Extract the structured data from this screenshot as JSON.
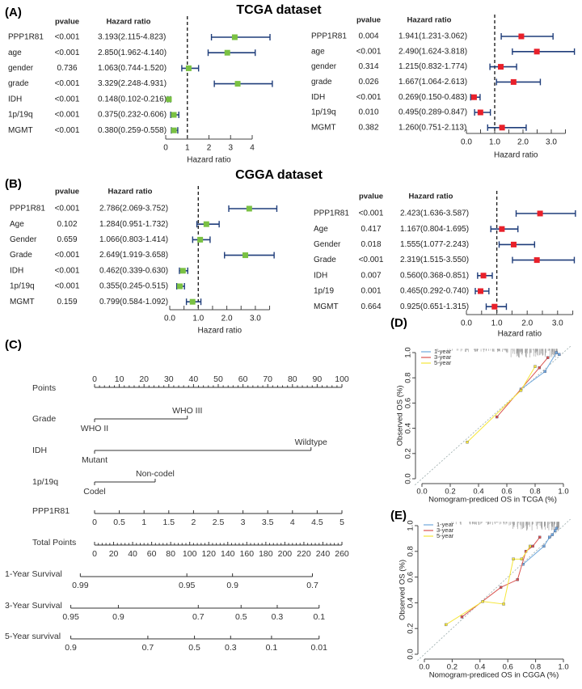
{
  "figure": {
    "panel_labels": [
      "(A)",
      "(B)",
      "(C)",
      "(D)",
      "(E)"
    ],
    "titles": {
      "tcga": "TCGA dataset",
      "cgga": "CGGA dataset"
    }
  },
  "chart_data": [
    {
      "type": "forest",
      "dataset": "TCGA",
      "col_headers": [
        "pvalue",
        "Hazard ratio"
      ],
      "xlabel": "Hazard ratio",
      "xlim": [
        0,
        4
      ],
      "ticks": [
        0,
        1,
        2,
        3,
        4
      ],
      "tick_labels": [
        "0",
        "1",
        "2",
        "3",
        "4"
      ],
      "ref_line": 1,
      "marker_color": "#7ac143",
      "ci_color": "#1f3d7a",
      "rows": [
        {
          "name": "PPP1R81",
          "pvalue": "<0.001",
          "hr_text": "3.193(2.115-4.823)",
          "hr": 3.193,
          "lo": 2.115,
          "hi": 4.823
        },
        {
          "name": "age",
          "pvalue": "<0.001",
          "hr_text": "2.850(1.962-4.140)",
          "hr": 2.85,
          "lo": 1.962,
          "hi": 4.14
        },
        {
          "name": "gender",
          "pvalue": "0.736",
          "hr_text": "1.063(0.744-1.520)",
          "hr": 1.063,
          "lo": 0.744,
          "hi": 1.52
        },
        {
          "name": "grade",
          "pvalue": "<0.001",
          "hr_text": "3.329(2.248-4.931)",
          "hr": 3.329,
          "lo": 2.248,
          "hi": 4.931
        },
        {
          "name": "IDH",
          "pvalue": "<0.001",
          "hr_text": "0.148(0.102-0.216)",
          "hr": 0.148,
          "lo": 0.102,
          "hi": 0.216
        },
        {
          "name": "1p/19q",
          "pvalue": "<0.001",
          "hr_text": "0.375(0.232-0.606)",
          "hr": 0.375,
          "lo": 0.232,
          "hi": 0.606
        },
        {
          "name": "MGMT",
          "pvalue": "<0.001",
          "hr_text": "0.380(0.259-0.558)",
          "hr": 0.38,
          "lo": 0.259,
          "hi": 0.558
        }
      ]
    },
    {
      "type": "forest",
      "dataset": "TCGA",
      "col_headers": [
        "pvalue",
        "Hazard ratio"
      ],
      "xlabel": "Hazard ratio",
      "xlim": [
        0,
        3.5
      ],
      "ticks": [
        0,
        1,
        2,
        3
      ],
      "tick_labels": [
        "0.0",
        "1.0",
        "2.0",
        "3.0"
      ],
      "ref_line": 1,
      "marker_color": "#e8202a",
      "ci_color": "#1f3d7a",
      "rows": [
        {
          "name": "PPP1R81",
          "pvalue": "0.004",
          "hr_text": "1.941(1.231-3.062)",
          "hr": 1.941,
          "lo": 1.231,
          "hi": 3.062
        },
        {
          "name": "age",
          "pvalue": "<0.001",
          "hr_text": "2.490(1.624-3.818)",
          "hr": 2.49,
          "lo": 1.624,
          "hi": 3.818
        },
        {
          "name": "gender",
          "pvalue": "0.314",
          "hr_text": "1.215(0.832-1.774)",
          "hr": 1.215,
          "lo": 0.832,
          "hi": 1.774
        },
        {
          "name": "grade",
          "pvalue": "0.026",
          "hr_text": "1.667(1.064-2.613)",
          "hr": 1.667,
          "lo": 1.064,
          "hi": 2.613
        },
        {
          "name": "IDH",
          "pvalue": "<0.001",
          "hr_text": "0.269(0.150-0.483)",
          "hr": 0.269,
          "lo": 0.15,
          "hi": 0.483
        },
        {
          "name": "1p/19q",
          "pvalue": "0.010",
          "hr_text": "0.495(0.289-0.847)",
          "hr": 0.495,
          "lo": 0.289,
          "hi": 0.847
        },
        {
          "name": "MGMT",
          "pvalue": "0.382",
          "hr_text": "1.260(0.751-2.113)",
          "hr": 1.26,
          "lo": 0.751,
          "hi": 2.113
        }
      ]
    },
    {
      "type": "forest",
      "dataset": "CGGA",
      "col_headers": [
        "pvalue",
        "Hazard ratio"
      ],
      "xlabel": "Hazard ratio",
      "xlim": [
        0,
        3.5
      ],
      "ticks": [
        0,
        1,
        2,
        3
      ],
      "tick_labels": [
        "0.0",
        "1.0",
        "2.0",
        "3.0"
      ],
      "ref_line": 1,
      "marker_color": "#7ac143",
      "ci_color": "#1f3d7a",
      "rows": [
        {
          "name": "PPP1R81",
          "pvalue": "<0.001",
          "hr_text": "2.786(2.069-3.752)",
          "hr": 2.786,
          "lo": 2.069,
          "hi": 3.752
        },
        {
          "name": "Age",
          "pvalue": "0.102",
          "hr_text": "1.284(0.951-1.732)",
          "hr": 1.284,
          "lo": 0.951,
          "hi": 1.732
        },
        {
          "name": "Gender",
          "pvalue": "0.659",
          "hr_text": "1.066(0.803-1.414)",
          "hr": 1.066,
          "lo": 0.803,
          "hi": 1.414
        },
        {
          "name": "Grade",
          "pvalue": "<0.001",
          "hr_text": "2.649(1.919-3.658)",
          "hr": 2.649,
          "lo": 1.919,
          "hi": 3.658
        },
        {
          "name": "IDH",
          "pvalue": "<0.001",
          "hr_text": "0.462(0.339-0.630)",
          "hr": 0.462,
          "lo": 0.339,
          "hi": 0.63
        },
        {
          "name": "1p/19q",
          "pvalue": "<0.001",
          "hr_text": "0.355(0.245-0.515)",
          "hr": 0.355,
          "lo": 0.245,
          "hi": 0.515
        },
        {
          "name": "MGMT",
          "pvalue": "0.159",
          "hr_text": "0.799(0.584-1.092)",
          "hr": 0.799,
          "lo": 0.584,
          "hi": 1.092
        }
      ]
    },
    {
      "type": "forest",
      "dataset": "CGGA",
      "col_headers": [
        "pvalue",
        "Hazard ratio"
      ],
      "xlabel": "Hazard ratio",
      "xlim": [
        0,
        3.5
      ],
      "ticks": [
        0,
        1,
        2,
        3
      ],
      "tick_labels": [
        "0.0",
        "1.0",
        "2.0",
        "3.0"
      ],
      "ref_line": 1,
      "marker_color": "#e8202a",
      "ci_color": "#1f3d7a",
      "rows": [
        {
          "name": "PPP1R81",
          "pvalue": "<0.001",
          "hr_text": "2.423(1.636-3.587)",
          "hr": 2.423,
          "lo": 1.636,
          "hi": 3.587
        },
        {
          "name": "Age",
          "pvalue": "0.417",
          "hr_text": "1.167(0.804-1.695)",
          "hr": 1.167,
          "lo": 0.804,
          "hi": 1.695
        },
        {
          "name": "Gender",
          "pvalue": "0.018",
          "hr_text": "1.555(1.077-2.243)",
          "hr": 1.555,
          "lo": 1.077,
          "hi": 2.243
        },
        {
          "name": "Grade",
          "pvalue": "<0.001",
          "hr_text": "2.319(1.515-3.550)",
          "hr": 2.319,
          "lo": 1.515,
          "hi": 3.55
        },
        {
          "name": "IDH",
          "pvalue": "0.007",
          "hr_text": "0.560(0.368-0.851)",
          "hr": 0.56,
          "lo": 0.368,
          "hi": 0.851
        },
        {
          "name": "1p/19",
          "pvalue": "0.001",
          "hr_text": "0.465(0.292-0.740)",
          "hr": 0.465,
          "lo": 0.292,
          "hi": 0.74
        },
        {
          "name": "MGMT",
          "pvalue": "0.664",
          "hr_text": "0.925(0.651-1.315)",
          "hr": 0.925,
          "lo": 0.651,
          "hi": 1.315
        }
      ]
    },
    {
      "type": "nomogram",
      "points_axis": {
        "label": "Points",
        "range": [
          0,
          100
        ],
        "ticks": [
          0,
          10,
          20,
          30,
          40,
          50,
          60,
          70,
          80,
          90,
          100
        ],
        "tick_labels": [
          "0",
          "10",
          "20",
          "30",
          "40",
          "50",
          "60",
          "70",
          "80",
          "90",
          "100"
        ]
      },
      "variables": [
        {
          "label": "Grade",
          "levels": [
            {
              "label": "WHO II",
              "points": 0
            },
            {
              "label": "WHO III",
              "points": 37.5
            }
          ]
        },
        {
          "label": "IDH",
          "levels": [
            {
              "label": "Mutant",
              "points": 0
            },
            {
              "label": "Wildtype",
              "points": 87.5
            }
          ]
        },
        {
          "label": "1p/19q",
          "levels": [
            {
              "label": "Codel",
              "points": 0
            },
            {
              "label": "Non-codel",
              "points": 24.5
            }
          ]
        }
      ],
      "continuous": {
        "label": "PPP1R81",
        "values": [
          0,
          0.5,
          1,
          1.5,
          2,
          2.5,
          3,
          3.5,
          4,
          4.5,
          5
        ],
        "tick_labels": [
          "0",
          "0.5",
          "1",
          "1.5",
          "2",
          "2.5",
          "3",
          "3.5",
          "4",
          "4.5",
          "5"
        ],
        "points_range": [
          0,
          100
        ]
      },
      "total_points": {
        "label": "Total Points",
        "range": [
          0,
          260
        ],
        "ticks": [
          0,
          20,
          40,
          60,
          80,
          100,
          120,
          140,
          160,
          180,
          200,
          220,
          240,
          260
        ],
        "tick_labels": [
          "0",
          "20",
          "40",
          "60",
          "80",
          "100",
          "120",
          "140",
          "160",
          "180",
          "200",
          "220",
          "240",
          "260"
        ]
      },
      "survival": [
        {
          "label": "1-Year Survival",
          "ticks": [
            {
              "label": "0.99",
              "total_points": -15
            },
            {
              "label": "0.95",
              "total_points": 97
            },
            {
              "label": "0.9",
              "total_points": 145
            },
            {
              "label": "0.7",
              "total_points": 229
            }
          ]
        },
        {
          "label": "3-Year Survival",
          "ticks": [
            {
              "label": "0.95",
              "total_points": -25
            },
            {
              "label": "0.9",
              "total_points": 25
            },
            {
              "label": "0.7",
              "total_points": 109
            },
            {
              "label": "0.5",
              "total_points": 154
            },
            {
              "label": "0.3",
              "total_points": 192
            },
            {
              "label": "0.1",
              "total_points": 236
            }
          ]
        },
        {
          "label": "5-Year survival",
          "ticks": [
            {
              "label": "0.9",
              "total_points": -25
            },
            {
              "label": "0.7",
              "total_points": 56
            },
            {
              "label": "0.5",
              "total_points": 105
            },
            {
              "label": "0.3",
              "total_points": 143
            },
            {
              "label": "0.1",
              "total_points": 186
            },
            {
              "label": "0.01",
              "total_points": 236
            }
          ]
        }
      ]
    },
    {
      "type": "line",
      "subtype": "calibration",
      "xlabel": "Nomogram-prediced OS in TCGA (%)",
      "ylabel": "Observed OS (%)",
      "xlim": [
        0,
        1
      ],
      "ylim": [
        0,
        1
      ],
      "ticks": [
        0,
        0.2,
        0.4,
        0.6,
        0.8,
        1.0
      ],
      "tick_labels": [
        "0.0",
        "0.2",
        "0.4",
        "0.6",
        "0.8",
        "1.0"
      ],
      "legend_position": "top-left",
      "series": [
        {
          "name": "1-year",
          "color": "#6fa8dc",
          "x": [
            0.7,
            0.87,
            0.95,
            0.97
          ],
          "y": [
            0.71,
            0.85,
            1.0,
            0.985
          ]
        },
        {
          "name": "3-year",
          "color": "#d9534f",
          "x": [
            0.53,
            0.83,
            0.89
          ],
          "y": [
            0.49,
            0.88,
            0.96
          ]
        },
        {
          "name": "5-year",
          "color": "#f5e63a",
          "x": [
            0.32,
            0.7,
            0.8
          ],
          "y": [
            0.29,
            0.7,
            0.89
          ]
        }
      ]
    },
    {
      "type": "line",
      "subtype": "calibration",
      "xlabel": "Nomogram-prediced OS in CGGA (%)",
      "ylabel": "Observed OS (%)",
      "xlim": [
        0,
        1
      ],
      "ylim": [
        0,
        1
      ],
      "ticks": [
        0,
        0.2,
        0.4,
        0.6,
        0.8,
        1.0
      ],
      "tick_labels": [
        "0.0",
        "0.2",
        "0.4",
        "0.6",
        "0.8",
        "1.0"
      ],
      "legend_position": "top-left",
      "series": [
        {
          "name": "1-year",
          "color": "#6fa8dc",
          "x": [
            0.71,
            0.86,
            0.9,
            0.92,
            0.94,
            0.95
          ],
          "y": [
            0.7,
            0.84,
            0.91,
            0.93,
            0.96,
            0.98
          ]
        },
        {
          "name": "3-year",
          "color": "#d9534f",
          "x": [
            0.27,
            0.55,
            0.67,
            0.73,
            0.78,
            0.83
          ],
          "y": [
            0.29,
            0.52,
            0.58,
            0.8,
            0.84,
            0.91
          ]
        },
        {
          "name": "5-year",
          "color": "#f5e63a",
          "x": [
            0.155,
            0.42,
            0.57,
            0.64,
            0.7,
            0.76
          ],
          "y": [
            0.23,
            0.41,
            0.39,
            0.74,
            0.74,
            0.84
          ]
        }
      ]
    }
  ]
}
